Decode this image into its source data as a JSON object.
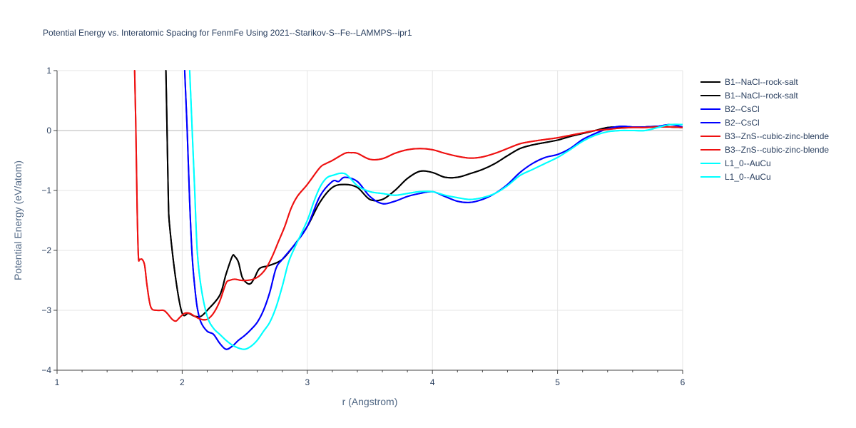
{
  "chart_data": {
    "type": "line",
    "title": "Potential Energy vs. Interatomic Spacing for FenmFe Using 2021--Starikov-S--Fe--LAMMPS--ipr1",
    "xlabel": "r (Angstrom)",
    "ylabel": "Potential Energy (eV/atom)",
    "xlim": [
      1,
      6
    ],
    "ylim": [
      -4,
      1
    ],
    "xticks": [
      1,
      2,
      3,
      4,
      5,
      6
    ],
    "yticks": [
      -4,
      -3,
      -2,
      -1,
      0,
      1
    ],
    "xtick_labels": [
      "1",
      "2",
      "3",
      "4",
      "5",
      "6"
    ],
    "ytick_labels": [
      "−4",
      "−3",
      "−2",
      "−1",
      "0",
      "1"
    ],
    "grid": true,
    "legend_position": "right",
    "series": [
      {
        "name": "B1--NaCl--rock-salt",
        "color": "#000000",
        "x": [
          1.87,
          1.88,
          1.89,
          1.9,
          1.95,
          2.0,
          2.05,
          2.1,
          2.15,
          2.2,
          2.3,
          2.35,
          2.4,
          2.42,
          2.45,
          2.48,
          2.52,
          2.55,
          2.58,
          2.62,
          2.7,
          2.8,
          2.9,
          3.0,
          3.1,
          3.2,
          3.3,
          3.4,
          3.5,
          3.6,
          3.7,
          3.8,
          3.9,
          4.0,
          4.1,
          4.2,
          4.3,
          4.4,
          4.5,
          4.6,
          4.7,
          4.8,
          4.9,
          5.0,
          5.1,
          5.2,
          5.3,
          5.4,
          5.5,
          5.6,
          5.7,
          5.8,
          5.9,
          6.0
        ],
        "y": [
          1.0,
          -0.1,
          -1.2,
          -1.6,
          -2.5,
          -3.05,
          -3.05,
          -3.1,
          -3.1,
          -3.0,
          -2.75,
          -2.4,
          -2.1,
          -2.1,
          -2.2,
          -2.45,
          -2.55,
          -2.55,
          -2.45,
          -2.3,
          -2.25,
          -2.15,
          -1.9,
          -1.6,
          -1.2,
          -0.95,
          -0.9,
          -0.95,
          -1.15,
          -1.15,
          -1.0,
          -0.8,
          -0.68,
          -0.7,
          -0.78,
          -0.78,
          -0.72,
          -0.65,
          -0.55,
          -0.42,
          -0.3,
          -0.24,
          -0.2,
          -0.16,
          -0.1,
          -0.05,
          0.0,
          0.05,
          0.06,
          0.06,
          0.06,
          0.07,
          0.06,
          0.05
        ]
      },
      {
        "name": "B1--NaCl--rock-salt",
        "color": "#000000",
        "x": [
          1.87,
          1.88,
          1.89,
          1.9,
          1.95,
          2.0,
          2.05,
          2.1,
          2.15,
          2.2,
          2.3,
          2.35,
          2.4,
          2.42,
          2.45,
          2.48,
          2.52,
          2.55,
          2.58,
          2.62,
          2.7,
          2.8,
          2.9,
          3.0,
          3.1,
          3.2,
          3.3,
          3.4,
          3.5,
          3.6,
          3.7,
          3.8,
          3.9,
          4.0,
          4.1,
          4.2,
          4.3,
          4.4,
          4.5,
          4.6,
          4.7,
          4.8,
          4.9,
          5.0,
          5.1,
          5.2,
          5.3,
          5.4,
          5.5,
          5.6,
          5.7,
          5.8,
          5.9,
          6.0
        ],
        "y": [
          1.0,
          -0.1,
          -1.2,
          -1.6,
          -2.5,
          -3.05,
          -3.05,
          -3.1,
          -3.1,
          -3.0,
          -2.75,
          -2.4,
          -2.1,
          -2.1,
          -2.2,
          -2.45,
          -2.55,
          -2.55,
          -2.45,
          -2.3,
          -2.25,
          -2.15,
          -1.9,
          -1.6,
          -1.2,
          -0.95,
          -0.9,
          -0.95,
          -1.15,
          -1.15,
          -1.0,
          -0.8,
          -0.68,
          -0.7,
          -0.78,
          -0.78,
          -0.72,
          -0.65,
          -0.55,
          -0.42,
          -0.3,
          -0.24,
          -0.2,
          -0.16,
          -0.1,
          -0.05,
          0.0,
          0.05,
          0.06,
          0.06,
          0.06,
          0.07,
          0.06,
          0.05
        ]
      },
      {
        "name": "B2--CsCl",
        "color": "#0000ff",
        "x": [
          2.02,
          2.04,
          2.06,
          2.08,
          2.1,
          2.12,
          2.15,
          2.2,
          2.25,
          2.3,
          2.35,
          2.4,
          2.45,
          2.5,
          2.55,
          2.6,
          2.65,
          2.7,
          2.75,
          2.8,
          2.9,
          3.0,
          3.1,
          3.2,
          3.25,
          3.3,
          3.4,
          3.5,
          3.6,
          3.7,
          3.8,
          3.9,
          4.0,
          4.1,
          4.2,
          4.3,
          4.4,
          4.5,
          4.6,
          4.7,
          4.8,
          4.9,
          5.0,
          5.1,
          5.2,
          5.3,
          5.4,
          5.5,
          5.6,
          5.7,
          5.8,
          5.9,
          6.0
        ],
        "y": [
          1.0,
          0.0,
          -1.2,
          -2.1,
          -2.6,
          -2.95,
          -3.2,
          -3.35,
          -3.4,
          -3.55,
          -3.65,
          -3.6,
          -3.5,
          -3.42,
          -3.32,
          -3.2,
          -3.0,
          -2.7,
          -2.3,
          -2.15,
          -1.9,
          -1.6,
          -1.1,
          -0.85,
          -0.85,
          -0.78,
          -0.85,
          -1.1,
          -1.22,
          -1.18,
          -1.1,
          -1.05,
          -1.02,
          -1.1,
          -1.18,
          -1.2,
          -1.15,
          -1.05,
          -0.9,
          -0.7,
          -0.55,
          -0.45,
          -0.4,
          -0.3,
          -0.15,
          -0.05,
          0.03,
          0.07,
          0.06,
          0.06,
          0.07,
          0.1,
          0.06
        ]
      },
      {
        "name": "B2--CsCl",
        "color": "#0000ff",
        "x": [
          2.02,
          2.04,
          2.06,
          2.08,
          2.1,
          2.12,
          2.15,
          2.2,
          2.25,
          2.3,
          2.35,
          2.4,
          2.45,
          2.5,
          2.55,
          2.6,
          2.65,
          2.7,
          2.75,
          2.8,
          2.9,
          3.0,
          3.1,
          3.2,
          3.25,
          3.3,
          3.4,
          3.5,
          3.6,
          3.7,
          3.8,
          3.9,
          4.0,
          4.1,
          4.2,
          4.3,
          4.4,
          4.5,
          4.6,
          4.7,
          4.8,
          4.9,
          5.0,
          5.1,
          5.2,
          5.3,
          5.4,
          5.5,
          5.6,
          5.7,
          5.8,
          5.9,
          6.0
        ],
        "y": [
          1.0,
          0.0,
          -1.2,
          -2.1,
          -2.6,
          -2.95,
          -3.2,
          -3.35,
          -3.4,
          -3.55,
          -3.65,
          -3.6,
          -3.5,
          -3.42,
          -3.32,
          -3.2,
          -3.0,
          -2.7,
          -2.3,
          -2.15,
          -1.9,
          -1.6,
          -1.1,
          -0.85,
          -0.85,
          -0.78,
          -0.85,
          -1.1,
          -1.22,
          -1.18,
          -1.1,
          -1.05,
          -1.02,
          -1.1,
          -1.18,
          -1.2,
          -1.15,
          -1.05,
          -0.9,
          -0.7,
          -0.55,
          -0.45,
          -0.4,
          -0.3,
          -0.15,
          -0.05,
          0.03,
          0.07,
          0.06,
          0.06,
          0.07,
          0.1,
          0.06
        ]
      },
      {
        "name": "B3--ZnS--cubic-zinc-blende",
        "color": "#ee1111",
        "x": [
          1.62,
          1.63,
          1.64,
          1.65,
          1.66,
          1.68,
          1.7,
          1.72,
          1.75,
          1.8,
          1.85,
          1.88,
          1.92,
          1.95,
          1.98,
          2.02,
          2.06,
          2.1,
          2.15,
          2.2,
          2.25,
          2.3,
          2.35,
          2.38,
          2.42,
          2.47,
          2.52,
          2.57,
          2.62,
          2.67,
          2.72,
          2.77,
          2.82,
          2.87,
          2.92,
          3.0,
          3.1,
          3.15,
          3.2,
          3.3,
          3.35,
          3.4,
          3.5,
          3.6,
          3.7,
          3.8,
          3.9,
          4.0,
          4.1,
          4.2,
          4.3,
          4.4,
          4.5,
          4.6,
          4.7,
          4.8,
          4.9,
          5.0,
          5.1,
          5.2,
          5.3,
          5.4,
          5.5,
          5.6,
          5.7,
          5.8,
          5.9,
          6.0
        ],
        "y": [
          1.0,
          0.0,
          -1.3,
          -2.1,
          -2.15,
          -2.15,
          -2.25,
          -2.6,
          -2.95,
          -3.0,
          -3.0,
          -3.05,
          -3.15,
          -3.18,
          -3.12,
          -3.05,
          -3.05,
          -3.1,
          -3.15,
          -3.15,
          -3.05,
          -2.85,
          -2.55,
          -2.5,
          -2.48,
          -2.5,
          -2.5,
          -2.48,
          -2.42,
          -2.3,
          -2.1,
          -1.85,
          -1.6,
          -1.3,
          -1.1,
          -0.9,
          -0.62,
          -0.55,
          -0.5,
          -0.38,
          -0.37,
          -0.38,
          -0.48,
          -0.47,
          -0.38,
          -0.32,
          -0.3,
          -0.32,
          -0.38,
          -0.43,
          -0.46,
          -0.44,
          -0.38,
          -0.3,
          -0.22,
          -0.18,
          -0.15,
          -0.12,
          -0.08,
          -0.04,
          0.0,
          0.02,
          0.04,
          0.05,
          0.05,
          0.06,
          0.06,
          0.05
        ]
      },
      {
        "name": "B3--ZnS--cubic-zinc-blende",
        "color": "#ee1111",
        "x": [
          1.62,
          1.63,
          1.64,
          1.65,
          1.66,
          1.68,
          1.7,
          1.72,
          1.75,
          1.8,
          1.85,
          1.88,
          1.92,
          1.95,
          1.98,
          2.02,
          2.06,
          2.1,
          2.15,
          2.2,
          2.25,
          2.3,
          2.35,
          2.38,
          2.42,
          2.47,
          2.52,
          2.57,
          2.62,
          2.67,
          2.72,
          2.77,
          2.82,
          2.87,
          2.92,
          3.0,
          3.1,
          3.15,
          3.2,
          3.3,
          3.35,
          3.4,
          3.5,
          3.6,
          3.7,
          3.8,
          3.9,
          4.0,
          4.1,
          4.2,
          4.3,
          4.4,
          4.5,
          4.6,
          4.7,
          4.8,
          4.9,
          5.0,
          5.1,
          5.2,
          5.3,
          5.4,
          5.5,
          5.6,
          5.7,
          5.8,
          5.9,
          6.0
        ],
        "y": [
          1.0,
          0.0,
          -1.3,
          -2.1,
          -2.15,
          -2.15,
          -2.25,
          -2.6,
          -2.95,
          -3.0,
          -3.0,
          -3.05,
          -3.15,
          -3.18,
          -3.12,
          -3.05,
          -3.05,
          -3.1,
          -3.15,
          -3.15,
          -3.05,
          -2.85,
          -2.55,
          -2.5,
          -2.48,
          -2.5,
          -2.5,
          -2.48,
          -2.42,
          -2.3,
          -2.1,
          -1.85,
          -1.6,
          -1.3,
          -1.1,
          -0.9,
          -0.62,
          -0.55,
          -0.5,
          -0.38,
          -0.37,
          -0.38,
          -0.48,
          -0.47,
          -0.38,
          -0.32,
          -0.3,
          -0.32,
          -0.38,
          -0.43,
          -0.46,
          -0.44,
          -0.38,
          -0.3,
          -0.22,
          -0.18,
          -0.15,
          -0.12,
          -0.08,
          -0.04,
          0.0,
          0.02,
          0.04,
          0.05,
          0.05,
          0.06,
          0.06,
          0.05
        ]
      },
      {
        "name": "L1_0--AuCu",
        "color": "#00ffff",
        "x": [
          2.06,
          2.08,
          2.1,
          2.12,
          2.15,
          2.2,
          2.25,
          2.3,
          2.35,
          2.4,
          2.45,
          2.5,
          2.55,
          2.6,
          2.65,
          2.7,
          2.75,
          2.8,
          2.85,
          2.9,
          3.0,
          3.05,
          3.1,
          3.15,
          3.2,
          3.3,
          3.4,
          3.5,
          3.6,
          3.7,
          3.8,
          3.9,
          4.0,
          4.1,
          4.2,
          4.3,
          4.4,
          4.5,
          4.6,
          4.7,
          4.8,
          4.9,
          5.0,
          5.1,
          5.2,
          5.3,
          5.4,
          5.5,
          5.6,
          5.7,
          5.8,
          5.9,
          6.0
        ],
        "y": [
          1.0,
          0.0,
          -1.0,
          -2.0,
          -2.6,
          -3.1,
          -3.3,
          -3.4,
          -3.5,
          -3.58,
          -3.63,
          -3.65,
          -3.6,
          -3.5,
          -3.35,
          -3.2,
          -2.95,
          -2.6,
          -2.2,
          -1.95,
          -1.5,
          -1.2,
          -0.95,
          -0.8,
          -0.75,
          -0.72,
          -0.92,
          -1.02,
          -1.05,
          -1.08,
          -1.05,
          -1.02,
          -1.02,
          -1.08,
          -1.12,
          -1.15,
          -1.12,
          -1.05,
          -0.92,
          -0.75,
          -0.65,
          -0.55,
          -0.45,
          -0.32,
          -0.18,
          -0.08,
          -0.02,
          0.0,
          0.0,
          0.0,
          0.05,
          0.1,
          0.1
        ]
      },
      {
        "name": "L1_0--AuCu",
        "color": "#00ffff",
        "x": [
          2.06,
          2.08,
          2.1,
          2.12,
          2.15,
          2.2,
          2.25,
          2.3,
          2.35,
          2.4,
          2.45,
          2.5,
          2.55,
          2.6,
          2.65,
          2.7,
          2.75,
          2.8,
          2.85,
          2.9,
          3.0,
          3.05,
          3.1,
          3.15,
          3.2,
          3.3,
          3.4,
          3.5,
          3.6,
          3.7,
          3.8,
          3.9,
          4.0,
          4.1,
          4.2,
          4.3,
          4.4,
          4.5,
          4.6,
          4.7,
          4.8,
          4.9,
          5.0,
          5.1,
          5.2,
          5.3,
          5.4,
          5.5,
          5.6,
          5.7,
          5.8,
          5.9,
          6.0
        ],
        "y": [
          1.0,
          0.0,
          -1.0,
          -2.0,
          -2.6,
          -3.1,
          -3.3,
          -3.4,
          -3.5,
          -3.58,
          -3.63,
          -3.65,
          -3.6,
          -3.5,
          -3.35,
          -3.2,
          -2.95,
          -2.6,
          -2.2,
          -1.95,
          -1.5,
          -1.2,
          -0.95,
          -0.8,
          -0.75,
          -0.72,
          -0.92,
          -1.02,
          -1.05,
          -1.08,
          -1.05,
          -1.02,
          -1.02,
          -1.08,
          -1.12,
          -1.15,
          -1.12,
          -1.05,
          -0.92,
          -0.75,
          -0.65,
          -0.55,
          -0.45,
          -0.32,
          -0.18,
          -0.08,
          -0.02,
          0.0,
          0.0,
          0.0,
          0.05,
          0.1,
          0.1
        ]
      }
    ]
  }
}
